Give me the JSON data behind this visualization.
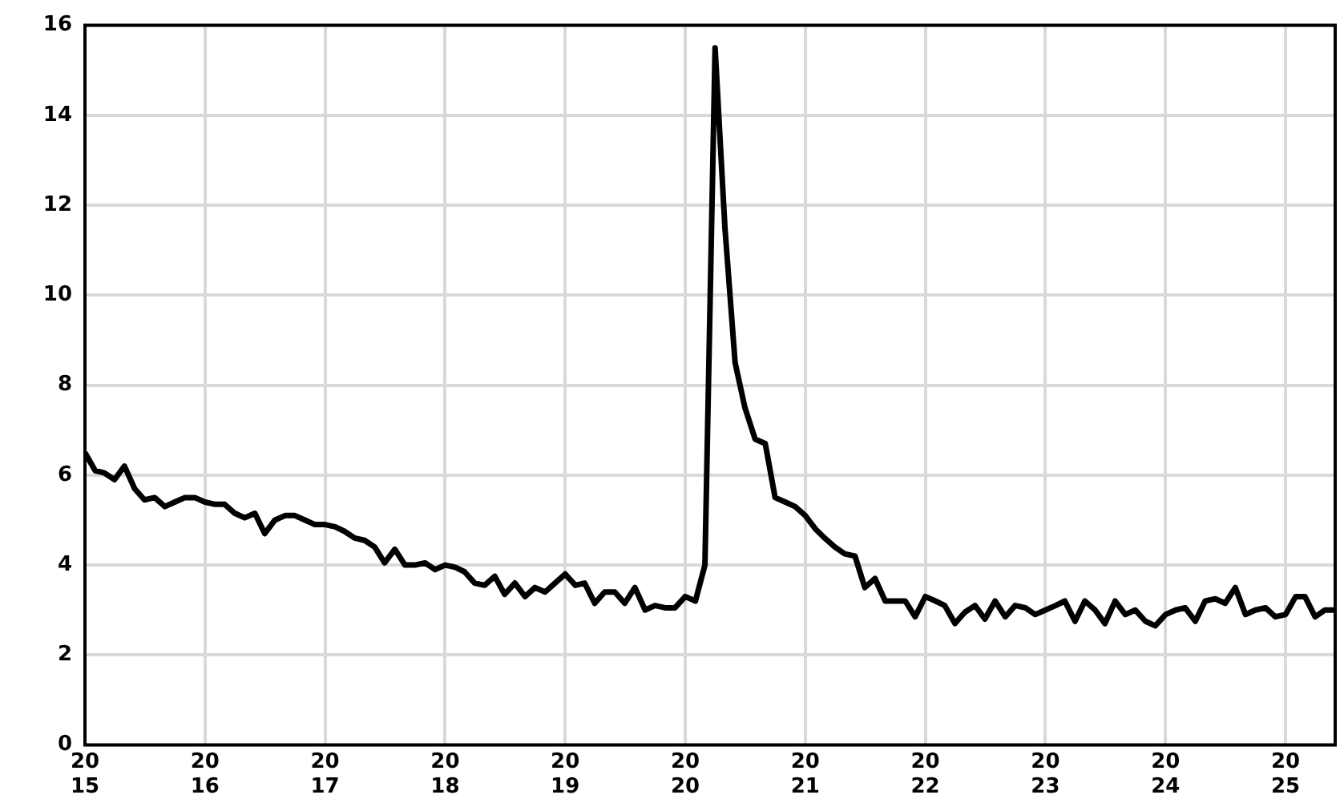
{
  "chart_data": {
    "type": "line",
    "x": [
      "2015-01",
      "2015-02",
      "2015-03",
      "2015-04",
      "2015-05",
      "2015-06",
      "2015-07",
      "2015-08",
      "2015-09",
      "2015-10",
      "2015-11",
      "2015-12",
      "2016-01",
      "2016-02",
      "2016-03",
      "2016-04",
      "2016-05",
      "2016-06",
      "2016-07",
      "2016-08",
      "2016-09",
      "2016-10",
      "2016-11",
      "2016-12",
      "2017-01",
      "2017-02",
      "2017-03",
      "2017-04",
      "2017-05",
      "2017-06",
      "2017-07",
      "2017-08",
      "2017-09",
      "2017-10",
      "2017-11",
      "2017-12",
      "2018-01",
      "2018-02",
      "2018-03",
      "2018-04",
      "2018-05",
      "2018-06",
      "2018-07",
      "2018-08",
      "2018-09",
      "2018-10",
      "2018-11",
      "2018-12",
      "2019-01",
      "2019-02",
      "2019-03",
      "2019-04",
      "2019-05",
      "2019-06",
      "2019-07",
      "2019-08",
      "2019-09",
      "2019-10",
      "2019-11",
      "2019-12",
      "2020-01",
      "2020-02",
      "2020-03",
      "2020-04",
      "2020-05",
      "2020-06",
      "2020-07",
      "2020-08",
      "2020-09",
      "2020-10",
      "2020-11",
      "2020-12",
      "2021-01",
      "2021-02",
      "2021-03",
      "2021-04",
      "2021-05",
      "2021-06",
      "2021-07",
      "2021-08",
      "2021-09",
      "2021-10",
      "2021-11",
      "2021-12",
      "2022-01",
      "2022-02",
      "2022-03",
      "2022-04",
      "2022-05",
      "2022-06",
      "2022-07",
      "2022-08",
      "2022-09",
      "2022-10",
      "2022-11",
      "2022-12",
      "2023-01",
      "2023-02",
      "2023-03",
      "2023-04",
      "2023-05",
      "2023-06",
      "2023-07",
      "2023-08",
      "2023-09",
      "2023-10",
      "2023-11",
      "2023-12",
      "2024-01",
      "2024-02",
      "2024-03",
      "2024-04",
      "2024-05",
      "2024-06",
      "2024-07",
      "2024-08",
      "2024-09",
      "2024-10",
      "2024-11",
      "2024-12",
      "2025-01",
      "2025-02",
      "2025-03",
      "2025-04",
      "2025-05",
      "2025-06"
    ],
    "series": [
      {
        "color": "#000000",
        "values": [
          6.5,
          6.1,
          6.05,
          5.9,
          6.2,
          5.7,
          5.45,
          5.5,
          5.3,
          5.4,
          5.5,
          5.5,
          5.4,
          5.35,
          5.35,
          5.15,
          5.05,
          5.15,
          4.7,
          5.0,
          5.1,
          5.1,
          5.0,
          4.9,
          4.9,
          4.85,
          4.75,
          4.6,
          4.55,
          4.4,
          4.05,
          4.35,
          4.0,
          4.0,
          4.05,
          3.9,
          4.0,
          3.95,
          3.85,
          3.6,
          3.55,
          3.75,
          3.35,
          3.6,
          3.3,
          3.5,
          3.4,
          3.6,
          3.8,
          3.55,
          3.6,
          3.15,
          3.4,
          3.4,
          3.15,
          3.5,
          3.0,
          3.1,
          3.05,
          3.05,
          3.3,
          3.2,
          4.0,
          15.5,
          11.5,
          8.5,
          7.5,
          6.8,
          6.7,
          5.5,
          5.4,
          5.3,
          5.1,
          4.8,
          4.6,
          4.4,
          4.25,
          4.2,
          3.5,
          3.7,
          3.2,
          3.2,
          3.2,
          2.85,
          3.3,
          3.2,
          3.1,
          2.7,
          2.95,
          3.1,
          2.8,
          3.2,
          2.85,
          3.1,
          3.05,
          2.9,
          3.0,
          3.1,
          3.2,
          2.75,
          3.2,
          3.0,
          2.7,
          3.2,
          2.9,
          3.0,
          2.75,
          2.65,
          2.9,
          3.0,
          3.05,
          2.75,
          3.2,
          3.25,
          3.15,
          3.5,
          2.9,
          3.0,
          3.05,
          2.85,
          2.9,
          3.3,
          3.3,
          2.85,
          3.0,
          3.0
        ]
      }
    ],
    "xlim": [
      "2015-01",
      "2025-06"
    ],
    "xticks": [
      {
        "value": "2015-01",
        "label": "2015"
      },
      {
        "value": "2016-01",
        "label": "2016"
      },
      {
        "value": "2017-01",
        "label": "2017"
      },
      {
        "value": "2018-01",
        "label": "2018"
      },
      {
        "value": "2019-01",
        "label": "2019"
      },
      {
        "value": "2020-01",
        "label": "2020"
      },
      {
        "value": "2021-01",
        "label": "2021"
      },
      {
        "value": "2022-01",
        "label": "2022"
      },
      {
        "value": "2023-01",
        "label": "2023"
      },
      {
        "value": "2024-01",
        "label": "2024"
      },
      {
        "value": "2025-01",
        "label": "2025"
      }
    ],
    "ylim": [
      0,
      16
    ],
    "yticks": [
      0,
      2,
      4,
      6,
      8,
      10,
      12,
      14,
      16
    ],
    "grid": true,
    "legend": false,
    "marker": "none",
    "line_style": "solid"
  }
}
